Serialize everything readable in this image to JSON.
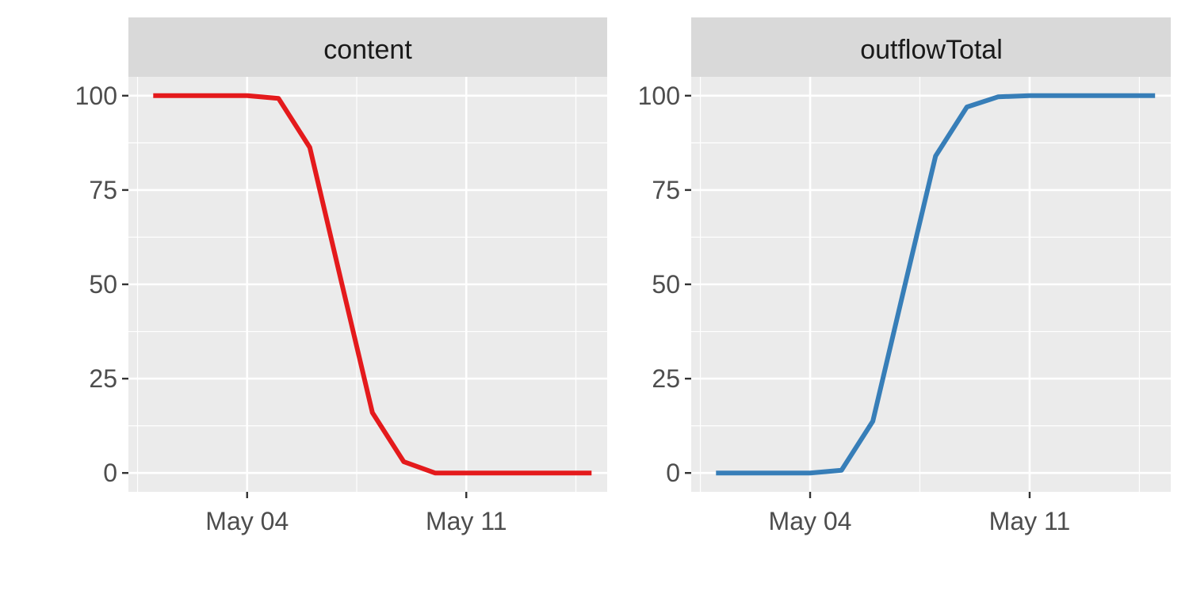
{
  "chart_data": [
    {
      "type": "line",
      "facet": "content",
      "x": [
        "2020-05-01",
        "2020-05-02",
        "2020-05-03",
        "2020-05-04",
        "2020-05-05",
        "2020-05-06",
        "2020-05-07",
        "2020-05-08",
        "2020-05-09",
        "2020-05-10",
        "2020-05-11",
        "2020-05-12",
        "2020-05-13",
        "2020-05-14",
        "2020-05-15"
      ],
      "series": [
        {
          "values": [
            100,
            100,
            100,
            100,
            99.3,
            86.3,
            51,
            16,
            3,
            0,
            0,
            0,
            0,
            0,
            0
          ]
        }
      ],
      "x_ticks": [
        {
          "date": "2020-05-04",
          "label": "May 04"
        },
        {
          "date": "2020-05-11",
          "label": "May 11"
        }
      ],
      "y_ticks": [
        0,
        25,
        50,
        75,
        100
      ],
      "xlim": [
        "2020-04-30T05:00",
        "2020-05-15T12:00"
      ],
      "ylim": [
        -5,
        105
      ],
      "grid": true,
      "color": "#E41A1C"
    },
    {
      "type": "line",
      "facet": "outflowTotal",
      "x": [
        "2020-05-01",
        "2020-05-02",
        "2020-05-03",
        "2020-05-04",
        "2020-05-05",
        "2020-05-06",
        "2020-05-07",
        "2020-05-08",
        "2020-05-09",
        "2020-05-10",
        "2020-05-11",
        "2020-05-12",
        "2020-05-13",
        "2020-05-14",
        "2020-05-15"
      ],
      "series": [
        {
          "values": [
            0,
            0,
            0,
            0,
            0.7,
            13.7,
            49,
            84,
            97,
            99.7,
            100,
            100,
            100,
            100,
            100
          ]
        }
      ],
      "x_ticks": [
        {
          "date": "2020-05-04",
          "label": "May 04"
        },
        {
          "date": "2020-05-11",
          "label": "May 11"
        }
      ],
      "y_ticks": [
        0,
        25,
        50,
        75,
        100
      ],
      "xlim": [
        "2020-04-30T05:00",
        "2020-05-15T12:00"
      ],
      "ylim": [
        -5,
        105
      ],
      "grid": true,
      "color": "#377EB8"
    }
  ]
}
